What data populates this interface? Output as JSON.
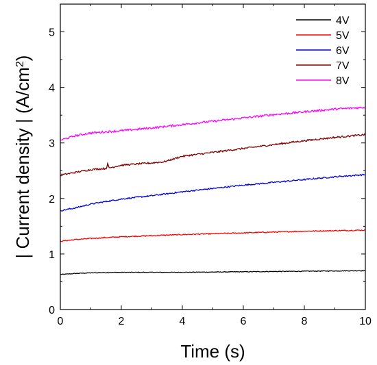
{
  "chart_data": {
    "type": "line",
    "title": "",
    "xlabel": "Time (s)",
    "ylabel": "| Current density | (A/cm",
    "ylabel_sup": "2",
    "ylabel_end": ")",
    "xlim": [
      0,
      10
    ],
    "ylim": [
      0,
      5.5
    ],
    "xticks": [
      0,
      2,
      4,
      6,
      8,
      10
    ],
    "yticks": [
      0,
      1,
      2,
      3,
      4,
      5
    ],
    "grid": false,
    "legend_position": "top-right",
    "series": [
      {
        "name": "4V",
        "color": "#000000",
        "x": [
          0,
          0.5,
          1,
          2,
          4,
          6,
          8,
          10
        ],
        "y": [
          0.63,
          0.65,
          0.66,
          0.67,
          0.67,
          0.68,
          0.69,
          0.7
        ]
      },
      {
        "name": "5V",
        "color": "#ff0000",
        "x": [
          0,
          0.5,
          1,
          2,
          4,
          6,
          8,
          10
        ],
        "y": [
          1.23,
          1.26,
          1.28,
          1.31,
          1.35,
          1.38,
          1.41,
          1.43
        ]
      },
      {
        "name": "6V",
        "color": "#0000dd",
        "x": [
          0,
          0.5,
          1,
          2,
          3,
          4,
          5,
          6,
          7,
          8,
          9,
          10
        ],
        "y": [
          1.78,
          1.83,
          1.9,
          1.99,
          2.05,
          2.12,
          2.18,
          2.24,
          2.29,
          2.34,
          2.39,
          2.43
        ]
      },
      {
        "name": "7V",
        "color": "#800000",
        "x": [
          0,
          0.5,
          1,
          1.5,
          1.55,
          1.6,
          2,
          3,
          3.4,
          4,
          5,
          6,
          7,
          8,
          9,
          10
        ],
        "y": [
          2.42,
          2.47,
          2.52,
          2.54,
          2.62,
          2.55,
          2.6,
          2.64,
          2.66,
          2.76,
          2.83,
          2.9,
          2.97,
          3.04,
          3.1,
          3.15
        ]
      },
      {
        "name": "8V",
        "color": "#ff00ff",
        "x": [
          0,
          0.5,
          1,
          2,
          3,
          4,
          5,
          6,
          7,
          8,
          9,
          10
        ],
        "y": [
          3.05,
          3.13,
          3.18,
          3.22,
          3.27,
          3.33,
          3.39,
          3.45,
          3.51,
          3.56,
          3.61,
          3.64
        ]
      }
    ]
  }
}
